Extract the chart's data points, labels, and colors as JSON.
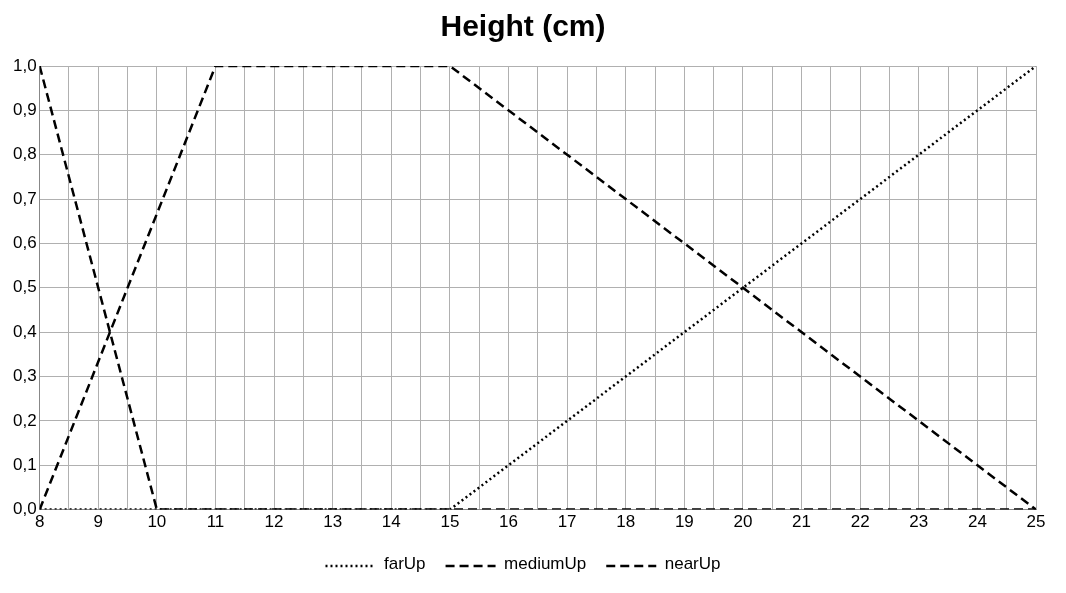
{
  "chart_data": {
    "type": "line",
    "title": "Height (cm)",
    "series": [
      {
        "name": "farUp",
        "color": "#000000",
        "line_style": "dotted",
        "x": [
          8,
          15,
          25
        ],
        "values": [
          0,
          0,
          1
        ]
      },
      {
        "name": "mediumUp",
        "color": "#000000",
        "line_style": "dashed",
        "x": [
          8,
          11,
          15,
          25
        ],
        "values": [
          0,
          1,
          1,
          0
        ]
      },
      {
        "name": "nearUp",
        "color": "#000000",
        "line_style": "dashed",
        "x": [
          8,
          10,
          25
        ],
        "values": [
          1,
          0,
          0
        ]
      }
    ],
    "xlim": [
      8,
      25
    ],
    "xticks": [
      8,
      {
        "value": 8.5,
        "label": null
      },
      9,
      {
        "value": 9.5,
        "label": null
      },
      10,
      {
        "value": 10.5,
        "label": null
      },
      11,
      {
        "value": 11.5,
        "label": null
      },
      12,
      {
        "value": 12.5,
        "label": null
      },
      13,
      {
        "value": 13.5,
        "label": null
      },
      14,
      {
        "value": 14.5,
        "label": null
      },
      15,
      {
        "value": 15.5,
        "label": null
      },
      16,
      {
        "value": 16.5,
        "label": null
      },
      17,
      {
        "value": 17.5,
        "label": null
      },
      18,
      {
        "value": 18.5,
        "label": null
      },
      19,
      {
        "value": 19.5,
        "label": null
      },
      20,
      {
        "value": 20.5,
        "label": null
      },
      21,
      {
        "value": 21.5,
        "label": null
      },
      22,
      {
        "value": 22.5,
        "label": null
      },
      23,
      {
        "value": 23.5,
        "label": null
      },
      24,
      {
        "value": 24.5,
        "label": null
      },
      25
    ],
    "ylim": [
      0,
      1
    ],
    "yticks": [
      {
        "value": 0,
        "label": "0,0"
      },
      {
        "value": 0.1,
        "label": "0,1"
      },
      {
        "value": 0.2,
        "label": "0,2"
      },
      {
        "value": 0.3,
        "label": "0,3"
      },
      {
        "value": 0.4,
        "label": "0,4"
      },
      {
        "value": 0.5,
        "label": "0,5"
      },
      {
        "value": 0.6,
        "label": "0,6"
      },
      {
        "value": 0.7,
        "label": "0,7"
      },
      {
        "value": 0.8,
        "label": "0,8"
      },
      {
        "value": 0.9,
        "label": "0,9"
      },
      {
        "value": 1,
        "label": "1,0"
      }
    ],
    "grid": true,
    "legend": "bottom",
    "marker": "none"
  }
}
